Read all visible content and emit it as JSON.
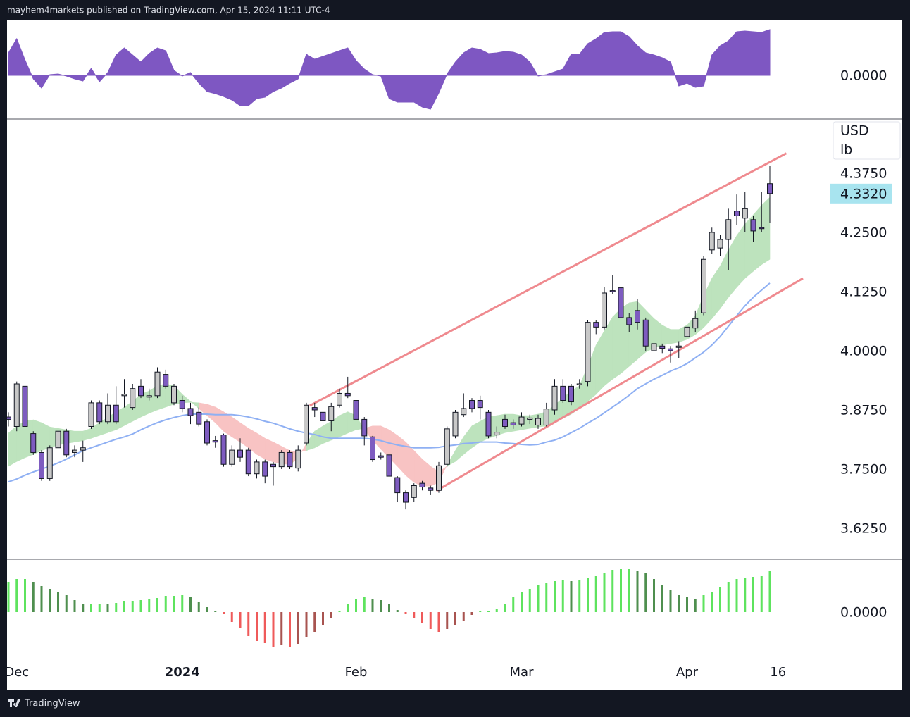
{
  "header": "mayhem4markets published on TradingView.com, Apr 15, 2024 11:11 UTC-4",
  "footer": "TradingView",
  "chart_data": [
    {
      "type": "area",
      "color": "#7e57c2",
      "ylim": [
        -0.061,
        0.079
      ],
      "yticks": [
        {
          "value": 0,
          "label": "0.0000"
        }
      ],
      "values": [
        0.032,
        0.052,
        0.022,
        -0.005,
        -0.018,
        0.001,
        0.002,
        -0.001,
        -0.005,
        -0.008,
        0.01,
        -0.009,
        0.004,
        0.029,
        0.039,
        0.029,
        0.019,
        0.031,
        0.039,
        0.035,
        0.007,
        -0.001,
        0.004,
        -0.011,
        -0.023,
        -0.026,
        -0.03,
        -0.035,
        -0.043,
        -0.043,
        -0.033,
        -0.031,
        -0.023,
        -0.018,
        -0.011,
        -0.005,
        0.03,
        0.023,
        0.027,
        0.031,
        0.035,
        0.039,
        0.021,
        0.009,
        0.001,
        -0.001,
        -0.033,
        -0.038,
        -0.038,
        -0.038,
        -0.045,
        -0.048,
        -0.025,
        0.002,
        0.019,
        0.032,
        0.039,
        0.037,
        0.031,
        0.032,
        0.034,
        0.033,
        0.029,
        0.019,
        -0.001,
        0.001,
        0.005,
        0.009,
        0.03,
        0.03,
        0.045,
        0.052,
        0.061,
        0.062,
        0.062,
        0.055,
        0.042,
        0.032,
        0.029,
        0.025,
        0.019,
        -0.015,
        -0.011,
        -0.017,
        -0.015,
        0.029,
        0.042,
        0.049,
        0.062,
        0.063,
        0.062,
        0.061,
        0.065
      ]
    },
    {
      "type": "candlestick",
      "currency": "USD",
      "unit": "lb",
      "up_color": "#c8c8c8",
      "down_color": "#7e5cc0",
      "ylim": [
        3.561,
        4.488
      ],
      "yticks": [
        {
          "value": 4.375,
          "label": "4.3750"
        },
        {
          "value": 4.25,
          "label": "4.2500"
        },
        {
          "value": 4.125,
          "label": "4.1250"
        },
        {
          "value": 4.0,
          "label": "4.0000"
        },
        {
          "value": 3.875,
          "label": "3.8750"
        },
        {
          "value": 3.75,
          "label": "3.7500"
        },
        {
          "value": 3.625,
          "label": "3.6250"
        }
      ],
      "last_price": {
        "value": 4.332,
        "label": "4.3320"
      },
      "open": [
        3.86,
        3.84,
        3.925,
        3.825,
        3.785,
        3.73,
        3.795,
        3.83,
        3.785,
        3.79,
        3.84,
        3.89,
        3.85,
        3.885,
        3.905,
        3.88,
        3.925,
        3.902,
        3.905,
        3.95,
        3.89,
        3.895,
        3.878,
        3.87,
        3.85,
        3.81,
        3.822,
        3.76,
        3.79,
        3.79,
        3.74,
        3.765,
        3.76,
        3.755,
        3.785,
        3.752,
        3.805,
        3.88,
        3.87,
        3.852,
        3.885,
        3.91,
        3.895,
        3.855,
        3.818,
        3.778,
        3.78,
        3.732,
        3.7,
        3.69,
        3.72,
        3.71,
        3.705,
        3.76,
        3.82,
        3.865,
        3.895,
        3.895,
        3.87,
        3.822,
        3.855,
        3.848,
        3.845,
        3.855,
        3.843,
        3.843,
        3.875,
        3.925,
        3.925,
        3.928,
        3.935,
        4.06,
        4.05,
        4.127,
        4.133,
        4.07,
        4.085,
        4.065,
        4.0,
        4.01,
        4.004,
        4.007,
        4.03,
        4.048,
        4.08,
        4.213,
        4.217,
        4.235,
        4.295,
        4.28,
        4.277,
        4.26,
        4.353
      ],
      "high": [
        3.87,
        3.935,
        3.93,
        3.83,
        3.79,
        3.8,
        3.845,
        3.835,
        3.8,
        3.81,
        3.895,
        3.895,
        3.91,
        3.925,
        3.94,
        3.93,
        3.94,
        3.92,
        3.965,
        3.96,
        3.93,
        3.905,
        3.89,
        3.88,
        3.855,
        3.82,
        3.825,
        3.8,
        3.815,
        3.795,
        3.77,
        3.77,
        3.765,
        3.79,
        3.79,
        3.8,
        3.89,
        3.89,
        3.875,
        3.89,
        3.92,
        3.945,
        3.9,
        3.86,
        3.82,
        3.785,
        3.79,
        3.735,
        3.705,
        3.72,
        3.725,
        3.715,
        3.765,
        3.84,
        3.875,
        3.91,
        3.9,
        3.905,
        3.875,
        3.84,
        3.865,
        3.855,
        3.87,
        3.865,
        3.865,
        3.89,
        3.94,
        3.94,
        3.93,
        3.94,
        4.065,
        4.065,
        4.135,
        4.16,
        4.135,
        4.08,
        4.11,
        4.07,
        4.02,
        4.015,
        4.01,
        4.02,
        4.06,
        4.085,
        4.2,
        4.26,
        4.245,
        4.3,
        4.33,
        4.335,
        4.285,
        4.335,
        4.39
      ],
      "low": [
        3.84,
        3.83,
        3.835,
        3.78,
        3.725,
        3.725,
        3.79,
        3.775,
        3.775,
        3.765,
        3.835,
        3.845,
        3.845,
        3.845,
        3.88,
        3.875,
        3.9,
        3.895,
        3.9,
        3.92,
        3.885,
        3.87,
        3.845,
        3.84,
        3.8,
        3.795,
        3.755,
        3.755,
        3.765,
        3.735,
        3.73,
        3.72,
        3.715,
        3.75,
        3.75,
        3.745,
        3.8,
        3.86,
        3.845,
        3.83,
        3.88,
        3.9,
        3.85,
        3.8,
        3.765,
        3.77,
        3.73,
        3.68,
        3.665,
        3.68,
        3.705,
        3.695,
        3.7,
        3.755,
        3.815,
        3.86,
        3.87,
        3.855,
        3.815,
        3.815,
        3.835,
        3.835,
        3.84,
        3.845,
        3.835,
        3.84,
        3.865,
        3.89,
        3.885,
        3.92,
        3.925,
        4.035,
        4.045,
        4.12,
        4.065,
        4.04,
        4.045,
        4.0,
        3.99,
        3.995,
        3.975,
        3.985,
        4.02,
        4.04,
        4.075,
        4.205,
        4.2,
        4.17,
        4.265,
        4.25,
        4.23,
        4.25,
        4.27
      ],
      "close": [
        3.855,
        3.93,
        3.84,
        3.785,
        3.73,
        3.795,
        3.83,
        3.78,
        3.79,
        3.795,
        3.89,
        3.85,
        3.885,
        3.85,
        3.908,
        3.92,
        3.905,
        3.905,
        3.955,
        3.925,
        3.925,
        3.878,
        3.863,
        3.845,
        3.805,
        3.807,
        3.76,
        3.79,
        3.775,
        3.74,
        3.765,
        3.735,
        3.755,
        3.785,
        3.755,
        3.79,
        3.885,
        3.875,
        3.852,
        3.882,
        3.91,
        3.905,
        3.855,
        3.82,
        3.77,
        3.775,
        3.735,
        3.7,
        3.68,
        3.715,
        3.712,
        3.705,
        3.757,
        3.835,
        3.87,
        3.878,
        3.878,
        3.88,
        3.82,
        3.828,
        3.84,
        3.843,
        3.86,
        3.858,
        3.857,
        3.877,
        3.925,
        3.895,
        3.892,
        3.93,
        4.06,
        4.05,
        4.122,
        4.125,
        4.07,
        4.055,
        4.06,
        4.01,
        4.015,
        4.005,
        4.0,
        4.01,
        4.05,
        4.068,
        4.193,
        4.25,
        4.235,
        4.277,
        4.285,
        4.3,
        4.253,
        4.258,
        4.332
      ],
      "ma": {
        "color": "#8fb0f3",
        "values": [
          3.723,
          3.729,
          3.737,
          3.744,
          3.75,
          3.756,
          3.763,
          3.771,
          3.78,
          3.789,
          3.795,
          3.801,
          3.807,
          3.813,
          3.818,
          3.824,
          3.833,
          3.841,
          3.848,
          3.854,
          3.859,
          3.863,
          3.866,
          3.866,
          3.866,
          3.865,
          3.865,
          3.865,
          3.863,
          3.86,
          3.856,
          3.851,
          3.847,
          3.841,
          3.835,
          3.83,
          3.826,
          3.823,
          3.818,
          3.815,
          3.815,
          3.815,
          3.815,
          3.815,
          3.813,
          3.81,
          3.805,
          3.801,
          3.798,
          3.795,
          3.795,
          3.795,
          3.796,
          3.799,
          3.801,
          3.804,
          3.805,
          3.807,
          3.807,
          3.807,
          3.805,
          3.804,
          3.802,
          3.801,
          3.802,
          3.807,
          3.811,
          3.818,
          3.827,
          3.836,
          3.847,
          3.857,
          3.869,
          3.881,
          3.893,
          3.906,
          3.92,
          3.93,
          3.94,
          3.948,
          3.957,
          3.964,
          3.973,
          3.985,
          3.997,
          4.012,
          4.03,
          4.052,
          4.074,
          4.095,
          4.113,
          4.128,
          4.143
        ]
      },
      "ribbon": {
        "up_color": "#bde3bd",
        "down_color": "#f8c3c3",
        "fast": [
          3.826,
          3.841,
          3.851,
          3.854,
          3.848,
          3.839,
          3.836,
          3.833,
          3.83,
          3.83,
          3.836,
          3.848,
          3.859,
          3.871,
          3.881,
          3.893,
          3.908,
          3.915,
          3.926,
          3.93,
          3.926,
          3.908,
          3.893,
          3.878,
          3.863,
          3.848,
          3.83,
          3.818,
          3.807,
          3.795,
          3.781,
          3.771,
          3.765,
          3.762,
          3.759,
          3.774,
          3.804,
          3.83,
          3.841,
          3.851,
          3.863,
          3.871,
          3.863,
          3.833,
          3.811,
          3.792,
          3.774,
          3.756,
          3.737,
          3.722,
          3.714,
          3.714,
          3.722,
          3.759,
          3.789,
          3.818,
          3.841,
          3.851,
          3.86,
          3.863,
          3.866,
          3.866,
          3.863,
          3.863,
          3.866,
          3.871,
          3.885,
          3.9,
          3.915,
          3.926,
          3.967,
          4.012,
          4.042,
          4.071,
          4.089,
          4.101,
          4.104,
          4.086,
          4.068,
          4.054,
          4.045,
          4.045,
          4.054,
          4.074,
          4.116,
          4.153,
          4.179,
          4.213,
          4.243,
          4.268,
          4.287,
          4.307,
          4.324
        ],
        "slow": [
          3.756,
          3.766,
          3.774,
          3.781,
          3.789,
          3.795,
          3.801,
          3.804,
          3.807,
          3.81,
          3.815,
          3.821,
          3.827,
          3.833,
          3.842,
          3.851,
          3.86,
          3.868,
          3.875,
          3.881,
          3.887,
          3.89,
          3.891,
          3.89,
          3.887,
          3.881,
          3.871,
          3.86,
          3.848,
          3.836,
          3.826,
          3.815,
          3.807,
          3.798,
          3.789,
          3.786,
          3.789,
          3.795,
          3.804,
          3.811,
          3.818,
          3.826,
          3.833,
          3.836,
          3.841,
          3.841,
          3.833,
          3.821,
          3.807,
          3.789,
          3.771,
          3.756,
          3.744,
          3.756,
          3.766,
          3.781,
          3.795,
          3.807,
          3.815,
          3.821,
          3.827,
          3.83,
          3.833,
          3.836,
          3.839,
          3.841,
          3.848,
          3.857,
          3.866,
          3.878,
          3.893,
          3.908,
          3.926,
          3.94,
          3.952,
          3.967,
          3.982,
          3.997,
          4.006,
          4.012,
          4.015,
          4.018,
          4.024,
          4.034,
          4.049,
          4.068,
          4.089,
          4.113,
          4.134,
          4.153,
          4.168,
          4.182,
          4.193
        ]
      },
      "trendline_color": "#ef8a8f",
      "trendlines": [
        {
          "x": [
            36.4,
            94.0
          ],
          "y": [
            3.884,
            4.417
          ]
        },
        {
          "x": [
            51.7,
            96.0
          ],
          "y": [
            3.704,
            4.153
          ]
        }
      ]
    },
    {
      "type": "bar",
      "colors": {
        "rise_above": "#5ee35e",
        "fall_above": "#4f8f4f",
        "fall_below": "#ef5a5a",
        "rise_below": "#a85450"
      },
      "ylim": [
        -0.071,
        0.074
      ],
      "yticks": [
        {
          "value": 0,
          "label": "0.0000"
        }
      ],
      "xticks": [
        {
          "value": 1,
          "label": "Dec"
        },
        {
          "value": 21,
          "label": "2024"
        },
        {
          "value": 42,
          "label": "Feb"
        },
        {
          "value": 62,
          "label": "Mar"
        },
        {
          "value": 82,
          "label": "Apr"
        },
        {
          "value": 93,
          "label": "16"
        }
      ],
      "values": [
        0.042,
        0.047,
        0.047,
        0.043,
        0.037,
        0.033,
        0.029,
        0.024,
        0.017,
        0.011,
        0.012,
        0.012,
        0.011,
        0.013,
        0.015,
        0.016,
        0.017,
        0.018,
        0.02,
        0.023,
        0.023,
        0.024,
        0.021,
        0.014,
        0.007,
        0.001,
        -0.003,
        -0.014,
        -0.023,
        -0.034,
        -0.041,
        -0.044,
        -0.049,
        -0.047,
        -0.049,
        -0.046,
        -0.036,
        -0.029,
        -0.019,
        -0.009,
        0.001,
        0.011,
        0.019,
        0.022,
        0.019,
        0.017,
        0.012,
        0.003,
        -0.003,
        -0.009,
        -0.016,
        -0.024,
        -0.029,
        -0.024,
        -0.018,
        -0.013,
        -0.004,
        0.001,
        0.001,
        0.005,
        0.012,
        0.021,
        0.029,
        0.033,
        0.038,
        0.041,
        0.044,
        0.045,
        0.044,
        0.045,
        0.049,
        0.051,
        0.056,
        0.06,
        0.061,
        0.061,
        0.059,
        0.055,
        0.047,
        0.039,
        0.031,
        0.024,
        0.021,
        0.019,
        0.024,
        0.029,
        0.036,
        0.043,
        0.047,
        0.049,
        0.05,
        0.051,
        0.059
      ]
    }
  ]
}
